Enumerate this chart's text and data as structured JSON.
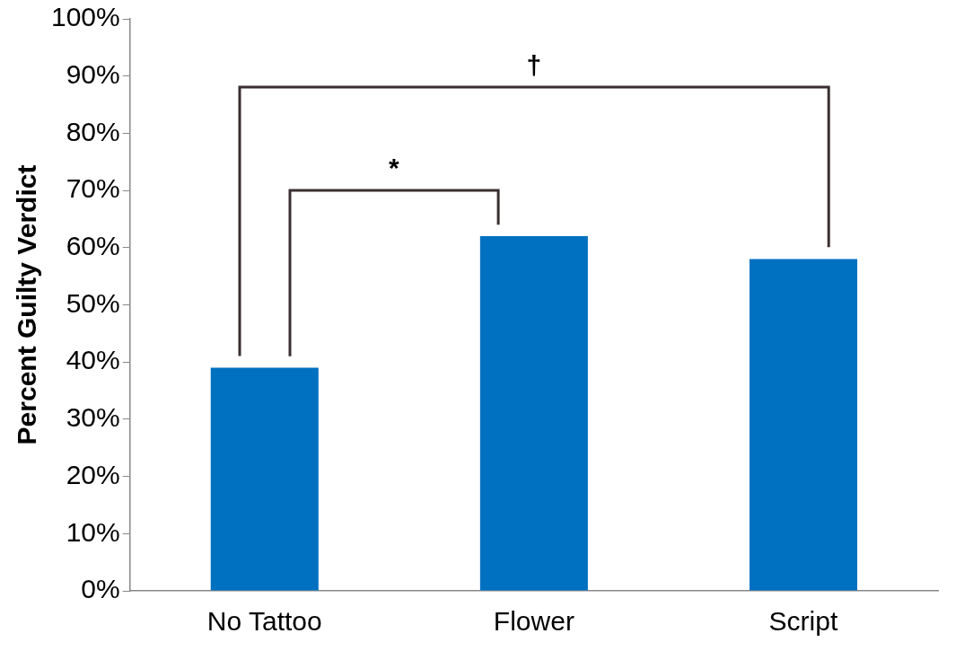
{
  "chart_data": {
    "type": "bar",
    "ylabel": "Percent Guilty Verdict",
    "categories": [
      "No Tattoo",
      "Flower",
      "Script"
    ],
    "values": [
      39,
      62,
      58
    ],
    "color": "#0070c0",
    "ylim": [
      0,
      100
    ],
    "yticks": [
      {
        "value": 0,
        "label": "0%"
      },
      {
        "value": 10,
        "label": "10%"
      },
      {
        "value": 20,
        "label": "20%"
      },
      {
        "value": 30,
        "label": "30%"
      },
      {
        "value": 40,
        "label": "40%"
      },
      {
        "value": 50,
        "label": "50%"
      },
      {
        "value": 60,
        "label": "60%"
      },
      {
        "value": 70,
        "label": "70%"
      },
      {
        "value": 80,
        "label": "80%"
      },
      {
        "value": 90,
        "label": "90%"
      },
      {
        "value": 100,
        "label": "100%"
      }
    ],
    "annotations": [
      "*",
      "†"
    ],
    "grid": false,
    "legend": false
  }
}
